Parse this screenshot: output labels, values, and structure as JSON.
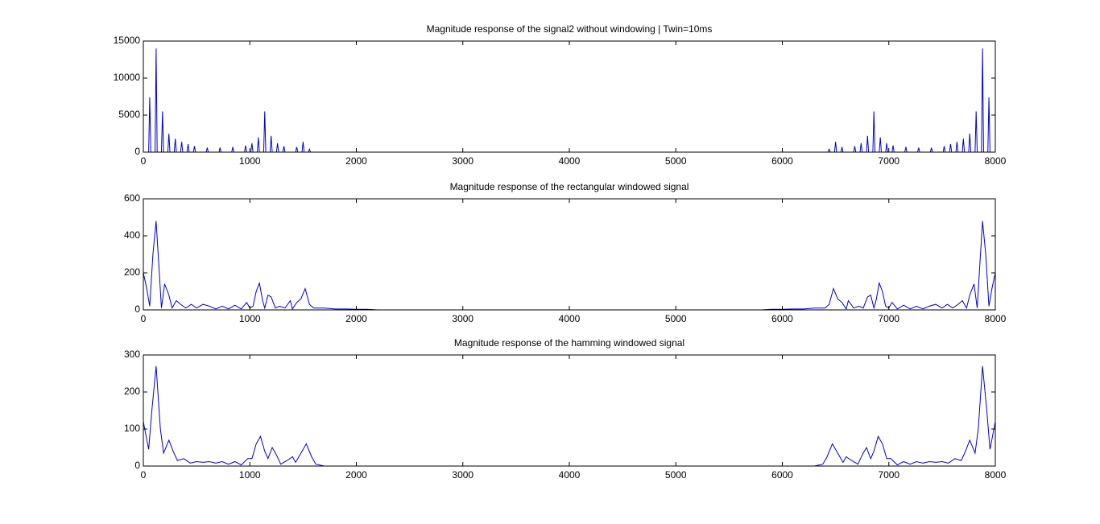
{
  "chart_data": [
    {
      "type": "line",
      "title": "Magnitude response of the signal2 without windowing | Twin=10ms",
      "xlim": [
        0,
        8000
      ],
      "xticks": [
        0,
        1000,
        2000,
        3000,
        4000,
        5000,
        6000,
        7000,
        8000
      ],
      "ylim": [
        0,
        15000
      ],
      "yticks": [
        0,
        5000,
        10000,
        15000
      ],
      "grid": false,
      "series": [
        {
          "color": "#0000cc",
          "x": [
            0,
            50,
            60,
            70,
            110,
            120,
            130,
            170,
            180,
            190,
            230,
            240,
            250,
            290,
            300,
            310,
            350,
            360,
            370,
            410,
            420,
            430,
            470,
            480,
            490,
            590,
            600,
            610,
            710,
            720,
            730,
            830,
            840,
            850,
            950,
            960,
            970,
            1010,
            1020,
            1030,
            1070,
            1080,
            1090,
            1130,
            1140,
            1150,
            1190,
            1200,
            1210,
            1250,
            1260,
            1270,
            1310,
            1320,
            1330,
            1430,
            1440,
            1450,
            1490,
            1500,
            1510,
            1550,
            1560,
            1570,
            6430,
            6440,
            6450,
            6490,
            6500,
            6510,
            6550,
            6560,
            6570,
            6670,
            6680,
            6690,
            6730,
            6740,
            6750,
            6790,
            6800,
            6810,
            6850,
            6860,
            6870,
            6910,
            6920,
            6930,
            6970,
            6980,
            6990,
            7030,
            7040,
            7050,
            7150,
            7160,
            7170,
            7270,
            7280,
            7290,
            7390,
            7400,
            7410,
            7510,
            7520,
            7530,
            7570,
            7580,
            7590,
            7630,
            7640,
            7650,
            7690,
            7700,
            7710,
            7750,
            7760,
            7770,
            7810,
            7820,
            7830,
            7870,
            7880,
            7890,
            7930,
            7940,
            7950,
            8000
          ],
          "values": [
            0,
            0,
            7400,
            0,
            0,
            14000,
            0,
            0,
            5500,
            0,
            0,
            2500,
            0,
            0,
            1800,
            0,
            0,
            1400,
            0,
            0,
            1100,
            0,
            0,
            800,
            0,
            0,
            600,
            0,
            0,
            600,
            0,
            0,
            700,
            0,
            0,
            900,
            0,
            0,
            1200,
            0,
            0,
            2000,
            0,
            0,
            5500,
            0,
            0,
            2200,
            0,
            0,
            1200,
            0,
            0,
            800,
            0,
            0,
            700,
            0,
            0,
            1400,
            0,
            0,
            400,
            0,
            0,
            400,
            0,
            0,
            1400,
            0,
            0,
            700,
            0,
            0,
            800,
            0,
            0,
            1200,
            0,
            0,
            2200,
            0,
            0,
            5500,
            0,
            0,
            2000,
            0,
            0,
            1200,
            0,
            0,
            900,
            0,
            0,
            700,
            0,
            0,
            600,
            0,
            0,
            600,
            0,
            0,
            800,
            0,
            0,
            1100,
            0,
            0,
            1400,
            0,
            0,
            1800,
            0,
            0,
            2500,
            0,
            0,
            5500,
            0,
            0,
            14000,
            0,
            0,
            7400,
            0,
            0
          ]
        }
      ]
    },
    {
      "type": "line",
      "title": "Magnitude response of the rectangular windowed signal",
      "xlim": [
        0,
        8000
      ],
      "xticks": [
        0,
        1000,
        2000,
        3000,
        4000,
        5000,
        6000,
        7000,
        8000
      ],
      "ylim": [
        0,
        600
      ],
      "yticks": [
        0,
        200,
        400,
        600
      ],
      "grid": false,
      "series": [
        {
          "color": "#0000cc",
          "x": [
            0,
            30,
            60,
            90,
            120,
            150,
            170,
            200,
            240,
            270,
            310,
            350,
            400,
            450,
            500,
            560,
            620,
            680,
            740,
            800,
            860,
            920,
            970,
            1000,
            1030,
            1060,
            1090,
            1120,
            1140,
            1170,
            1200,
            1240,
            1280,
            1330,
            1380,
            1400,
            1440,
            1480,
            1520,
            1560,
            1600,
            1700,
            1800,
            1900,
            2000,
            2100,
            2200,
            5800,
            5900,
            6000,
            6100,
            6200,
            6300,
            6400,
            6440,
            6480,
            6520,
            6560,
            6600,
            6620,
            6670,
            6720,
            6760,
            6800,
            6830,
            6860,
            6880,
            6910,
            6940,
            6970,
            7000,
            7030,
            7080,
            7140,
            7200,
            7260,
            7320,
            7380,
            7440,
            7500,
            7550,
            7600,
            7650,
            7690,
            7730,
            7760,
            7800,
            7830,
            7850,
            7880,
            7910,
            7940,
            7970,
            8000
          ],
          "values": [
            200,
            120,
            20,
            300,
            480,
            200,
            10,
            140,
            80,
            10,
            50,
            30,
            10,
            30,
            10,
            30,
            20,
            5,
            20,
            5,
            25,
            5,
            40,
            10,
            20,
            100,
            145,
            50,
            10,
            80,
            70,
            10,
            20,
            10,
            50,
            5,
            40,
            60,
            115,
            30,
            10,
            10,
            5,
            5,
            3,
            3,
            0,
            0,
            3,
            3,
            5,
            5,
            10,
            10,
            30,
            115,
            60,
            40,
            5,
            50,
            10,
            20,
            10,
            70,
            80,
            10,
            50,
            145,
            100,
            20,
            10,
            40,
            5,
            25,
            5,
            20,
            5,
            20,
            30,
            10,
            30,
            10,
            30,
            50,
            10,
            80,
            140,
            10,
            200,
            480,
            300,
            20,
            120,
            200
          ]
        }
      ]
    },
    {
      "type": "line",
      "title": "Magnitude response of the hamming windowed signal",
      "xlim": [
        0,
        8000
      ],
      "xticks": [
        0,
        1000,
        2000,
        3000,
        4000,
        5000,
        6000,
        7000,
        8000
      ],
      "ylim": [
        0,
        300
      ],
      "yticks": [
        0,
        100,
        200,
        300
      ],
      "grid": false,
      "series": [
        {
          "color": "#0000cc",
          "x": [
            0,
            50,
            80,
            120,
            160,
            190,
            240,
            280,
            320,
            380,
            440,
            500,
            560,
            620,
            680,
            740,
            800,
            860,
            920,
            980,
            1020,
            1060,
            1100,
            1140,
            1170,
            1210,
            1250,
            1290,
            1350,
            1400,
            1430,
            1480,
            1530,
            1580,
            1620,
            1700,
            6300,
            6380,
            6420,
            6470,
            6520,
            6570,
            6600,
            6650,
            6710,
            6750,
            6790,
            6830,
            6860,
            6900,
            6940,
            6980,
            7020,
            7080,
            7140,
            7200,
            7260,
            7320,
            7380,
            7440,
            7500,
            7560,
            7620,
            7680,
            7720,
            7760,
            7810,
            7840,
            7880,
            7920,
            7950,
            8000
          ],
          "values": [
            120,
            45,
            150,
            270,
            100,
            35,
            70,
            40,
            15,
            20,
            8,
            12,
            10,
            12,
            8,
            12,
            5,
            12,
            3,
            20,
            20,
            60,
            80,
            40,
            20,
            50,
            30,
            5,
            15,
            25,
            10,
            35,
            60,
            25,
            5,
            0,
            0,
            5,
            25,
            60,
            35,
            10,
            25,
            15,
            5,
            30,
            50,
            20,
            40,
            80,
            60,
            20,
            20,
            3,
            12,
            5,
            12,
            8,
            12,
            10,
            12,
            8,
            20,
            15,
            40,
            70,
            35,
            100,
            270,
            150,
            45,
            120
          ]
        }
      ]
    }
  ]
}
